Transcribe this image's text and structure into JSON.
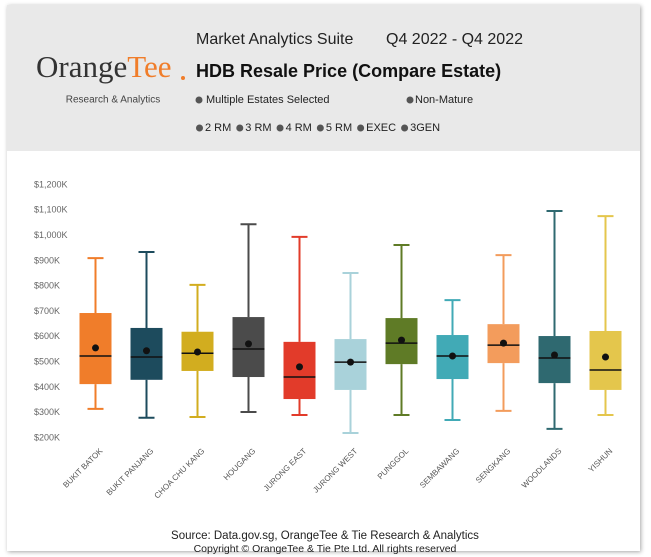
{
  "header": {
    "logo": [
      "Orange",
      "Tee"
    ],
    "logo_subtitle": "Research & Analytics",
    "suite": "Market Analytics Suite",
    "period": "Q4 2022 - Q4 2022",
    "title": "HDB Resale Price (Compare Estate)",
    "estate_filter": "Multiple Estates Selected",
    "maturity_filter": "Non-Mature",
    "flat_types": [
      "2 RM",
      "3 RM",
      "4 RM",
      "5 RM",
      "EXEC",
      "3GEN"
    ]
  },
  "chart_data": {
    "type": "box",
    "categories": [
      "BUKIT BATOK",
      "BUKIT PANJANG",
      "CHOA CHU KANG",
      "HOUGANG",
      "JURONG EAST",
      "JURONG WEST",
      "PUNGGOL",
      "SEMBAWANG",
      "SENGKANG",
      "WOODLANDS",
      "YISHUN"
    ],
    "colors": [
      "#f07d2a",
      "#1d4b5d",
      "#d2ad1f",
      "#4b4b4b",
      "#e23b2a",
      "#a9d2da",
      "#5f7b26",
      "#41aab6",
      "#f39c5c",
      "#2f6970",
      "#e4c64c"
    ],
    "boxes": [
      {
        "min": 315,
        "q1": 413,
        "median": 524,
        "q3": 694,
        "max": 911,
        "mean": 556
      },
      {
        "min": 280,
        "q1": 430,
        "median": 520,
        "q3": 635,
        "max": 935,
        "mean": 545
      },
      {
        "min": 283,
        "q1": 465,
        "median": 535,
        "q3": 620,
        "max": 805,
        "mean": 540
      },
      {
        "min": 303,
        "q1": 441,
        "median": 552,
        "q3": 678,
        "max": 1045,
        "mean": 572
      },
      {
        "min": 291,
        "q1": 354,
        "median": 441,
        "q3": 580,
        "max": 995,
        "mean": 481
      },
      {
        "min": 220,
        "q1": 390,
        "median": 500,
        "q3": 591,
        "max": 852,
        "mean": 500
      },
      {
        "min": 291,
        "q1": 492,
        "median": 575,
        "q3": 674,
        "max": 963,
        "mean": 587
      },
      {
        "min": 271,
        "q1": 433,
        "median": 524,
        "q3": 607,
        "max": 745,
        "mean": 524
      },
      {
        "min": 307,
        "q1": 496,
        "median": 567,
        "q3": 650,
        "max": 923,
        "mean": 575
      },
      {
        "min": 236,
        "q1": 417,
        "median": 516,
        "q3": 603,
        "max": 1097,
        "mean": 528
      },
      {
        "min": 291,
        "q1": 390,
        "median": 469,
        "q3": 623,
        "max": 1077,
        "mean": 520
      }
    ],
    "ylim": [
      200,
      1200
    ],
    "yticks": [
      {
        "value": 200,
        "label": "$200K"
      },
      {
        "value": 300,
        "label": "$300K"
      },
      {
        "value": 400,
        "label": "$400K"
      },
      {
        "value": 500,
        "label": "$500K"
      },
      {
        "value": 600,
        "label": "$600K"
      },
      {
        "value": 700,
        "label": "$700K"
      },
      {
        "value": 800,
        "label": "$800K"
      },
      {
        "value": 900,
        "label": "$900K"
      },
      {
        "value": 1000,
        "label": "$1,000K"
      },
      {
        "value": 1100,
        "label": "$1,100K"
      },
      {
        "value": 1200,
        "label": "$1,200K"
      }
    ]
  },
  "footer": {
    "source": "Source: Data.gov.sg, OrangeTee & Tie Research & Analytics",
    "copyright": "Copyright © OrangeTee & Tie Pte Ltd. All rights reserved"
  }
}
